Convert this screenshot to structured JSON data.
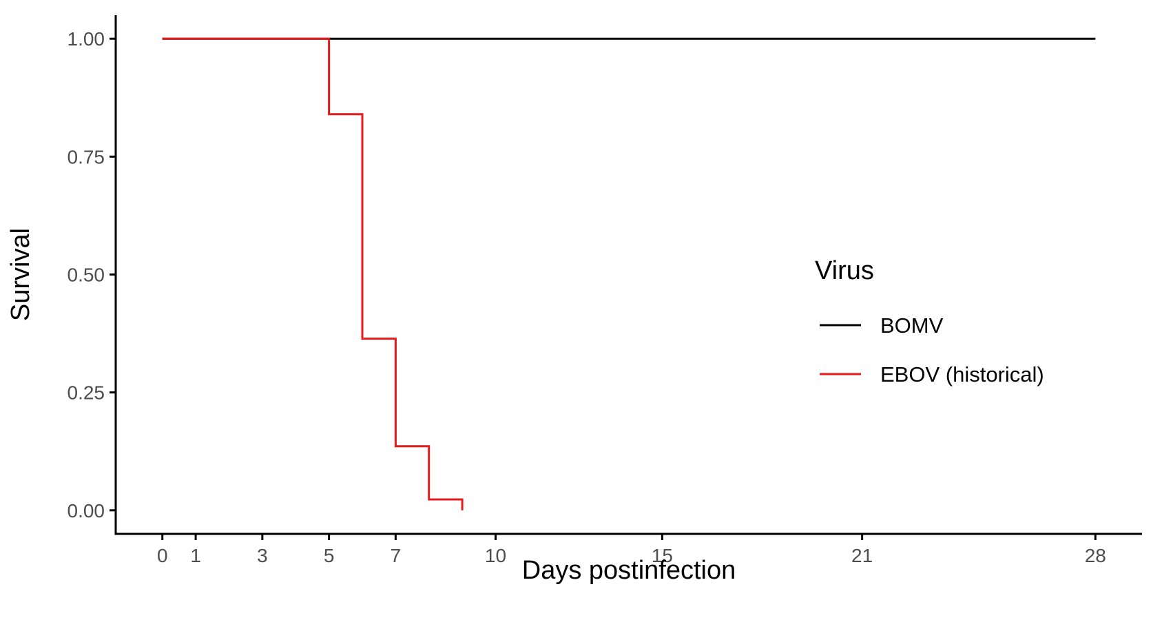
{
  "chart_data": {
    "type": "line",
    "subtype": "survival-step",
    "title": "",
    "xlabel": "Days postinfection",
    "ylabel": "Survival",
    "xlim": [
      -1.4,
      29.4
    ],
    "ylim": [
      -0.05,
      1.05
    ],
    "x_ticks": [
      0,
      1,
      3,
      5,
      7,
      10,
      15,
      21,
      28
    ],
    "x_tick_labels": [
      "0",
      "1",
      "3",
      "5",
      "7",
      "10",
      "15",
      "21",
      "28"
    ],
    "y_ticks": [
      0,
      0.25,
      0.5,
      0.75,
      1
    ],
    "y_tick_labels": [
      "0.00",
      "0.25",
      "0.50",
      "0.75",
      "1.00"
    ],
    "grid": false,
    "legend": {
      "title": "Virus",
      "placement": "right"
    },
    "series": [
      {
        "name": "BOMV",
        "color": "#000000",
        "x": [
          0,
          28
        ],
        "y": [
          1,
          1
        ]
      },
      {
        "name": "EBOV (historical)",
        "color": "#e41a1c",
        "x": [
          0,
          5,
          6,
          7,
          8,
          9
        ],
        "y": [
          1,
          0.84,
          0.364,
          0.136,
          0.023,
          0
        ]
      }
    ]
  }
}
